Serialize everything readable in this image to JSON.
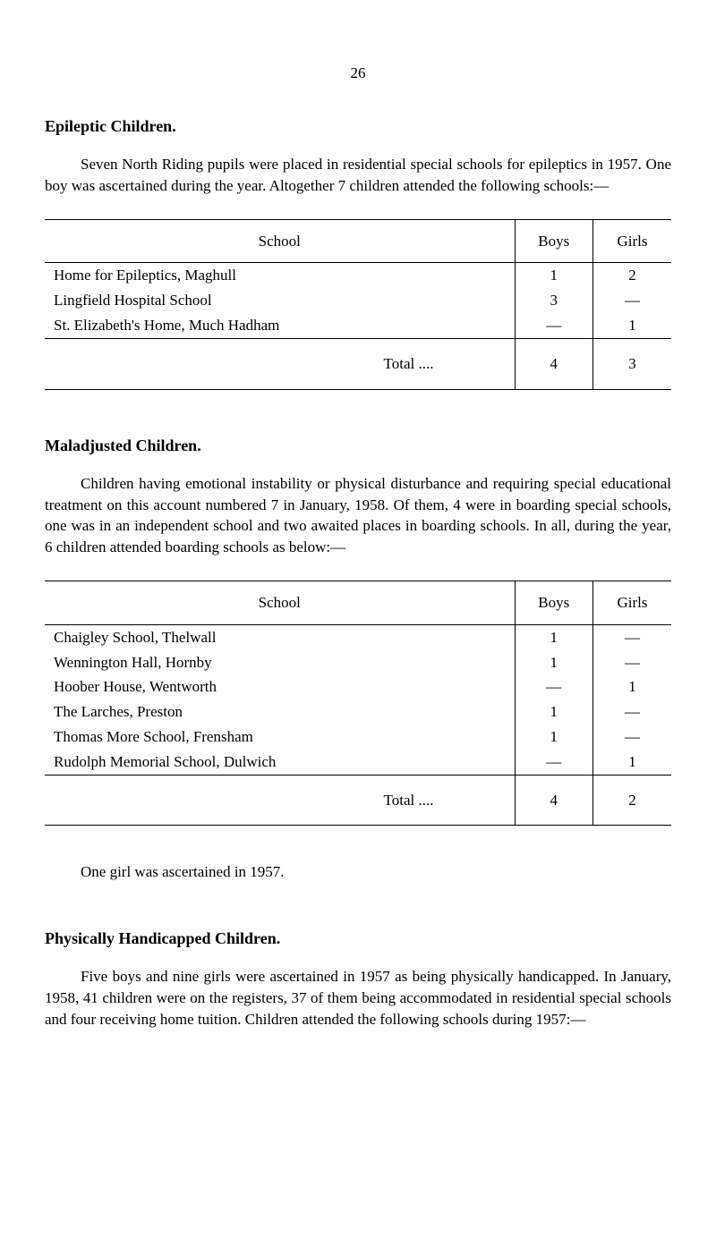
{
  "page_number": "26",
  "section1": {
    "heading": "Epileptic Children.",
    "paragraph": "Seven North Riding pupils were placed in residential special schools for epileptics in 1957. One boy was ascertained during the year. Altogether 7 children attended the following schools:—",
    "table": {
      "headers": {
        "school": "School",
        "boys": "Boys",
        "girls": "Girls"
      },
      "rows": [
        {
          "school": "Home for Epileptics, Maghull",
          "boys": "1",
          "girls": "2"
        },
        {
          "school": "Lingfield Hospital School",
          "boys": "3",
          "girls": "—"
        },
        {
          "school": "St. Elizabeth's Home, Much Hadham",
          "boys": "—",
          "girls": "1"
        }
      ],
      "total": {
        "label": "Total ....",
        "boys": "4",
        "girls": "3"
      }
    }
  },
  "section2": {
    "heading": "Maladjusted Children.",
    "paragraph": "Children having emotional instability or physical disturbance and requiring special educational treatment on this account numbered 7 in January, 1958. Of them, 4 were in boarding special schools, one was in an independent school and two awaited places in boarding schools. In all, during the year, 6 children attended boarding schools as below:—",
    "table": {
      "headers": {
        "school": "School",
        "boys": "Boys",
        "girls": "Girls"
      },
      "rows": [
        {
          "school": "Chaigley School, Thelwall",
          "boys": "1",
          "girls": "—"
        },
        {
          "school": "Wennington Hall, Hornby",
          "boys": "1",
          "girls": "—"
        },
        {
          "school": "Hoober House, Wentworth",
          "boys": "—",
          "girls": "1"
        },
        {
          "school": "The Larches, Preston",
          "boys": "1",
          "girls": "—"
        },
        {
          "school": "Thomas More School, Frensham",
          "boys": "1",
          "girls": "—"
        },
        {
          "school": "Rudolph Memorial School, Dulwich",
          "boys": "—",
          "girls": "1"
        }
      ],
      "total": {
        "label": "Total ....",
        "boys": "4",
        "girls": "2"
      }
    },
    "footnote": "One girl was ascertained in 1957."
  },
  "section3": {
    "heading": "Physically Handicapped Children.",
    "paragraph": "Five boys and nine girls were ascertained in 1957 as being physically handicapped. In January, 1958, 41 children were on the registers, 37 of them being accommodated in residential special schools and four receiving home tuition. Children attended the following schools during 1957:—"
  },
  "dots": "...."
}
